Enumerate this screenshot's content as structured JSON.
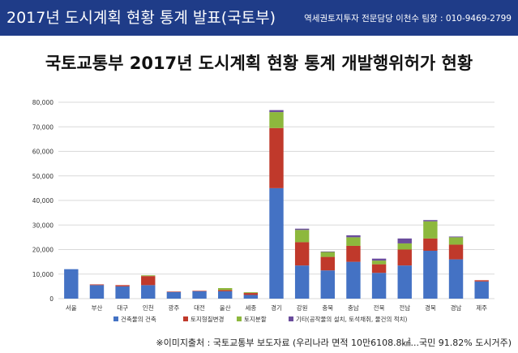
{
  "header": {
    "title": "2017년 도시계획 현황 통계 발표(국토부)",
    "contact": "역세권토지투자 전문담당 이천수 팀장 : 010-9469-2799"
  },
  "colors": {
    "header_bg": "#1f3c88",
    "series": [
      "#4472c4",
      "#c0392b",
      "#8db83d",
      "#6a4c9c"
    ]
  },
  "chart_data": {
    "type": "bar",
    "stacked": true,
    "title": "국토교통부 2017년 도시계획 현황 통계 개발행위허가 현황",
    "xlabel": "",
    "ylabel": "",
    "ylim": [
      0,
      80000
    ],
    "yticks": [
      "0",
      "10,000",
      "20,000",
      "30,000",
      "40,000",
      "50,000",
      "60,000",
      "70,000",
      "80,000"
    ],
    "grid": true,
    "legend_position": "bottom",
    "categories": [
      "서울",
      "부산",
      "대구",
      "인천",
      "광주",
      "대전",
      "울산",
      "세종",
      "경기",
      "강원",
      "충북",
      "충남",
      "전북",
      "전남",
      "경북",
      "경남",
      "제주"
    ],
    "series": [
      {
        "name": "건축물의 건축",
        "values": [
          12000,
          5500,
          5000,
          5500,
          2700,
          3000,
          3000,
          1500,
          45000,
          13500,
          11500,
          15000,
          10500,
          13500,
          19500,
          16000,
          7000
        ]
      },
      {
        "name": "토지형질변경",
        "values": [
          0,
          300,
          500,
          3700,
          200,
          200,
          500,
          800,
          24500,
          9500,
          5500,
          6500,
          3500,
          6500,
          5000,
          6000,
          500
        ]
      },
      {
        "name": "토지분할",
        "values": [
          0,
          0,
          0,
          300,
          0,
          0,
          800,
          300,
          6500,
          5000,
          2000,
          3500,
          1500,
          2500,
          7000,
          3000,
          0
        ]
      },
      {
        "name": "기타(공작물의 설치, 토석채취, 물건의 적치)",
        "values": [
          0,
          0,
          0,
          0,
          0,
          0,
          0,
          0,
          800,
          500,
          200,
          800,
          800,
          2000,
          500,
          300,
          0
        ]
      }
    ]
  },
  "source": "※이미지출처 : 국토교통부 보도자료 (우리나라 면적 10만6108.8㎢...국민 91.82% 도시거주)"
}
